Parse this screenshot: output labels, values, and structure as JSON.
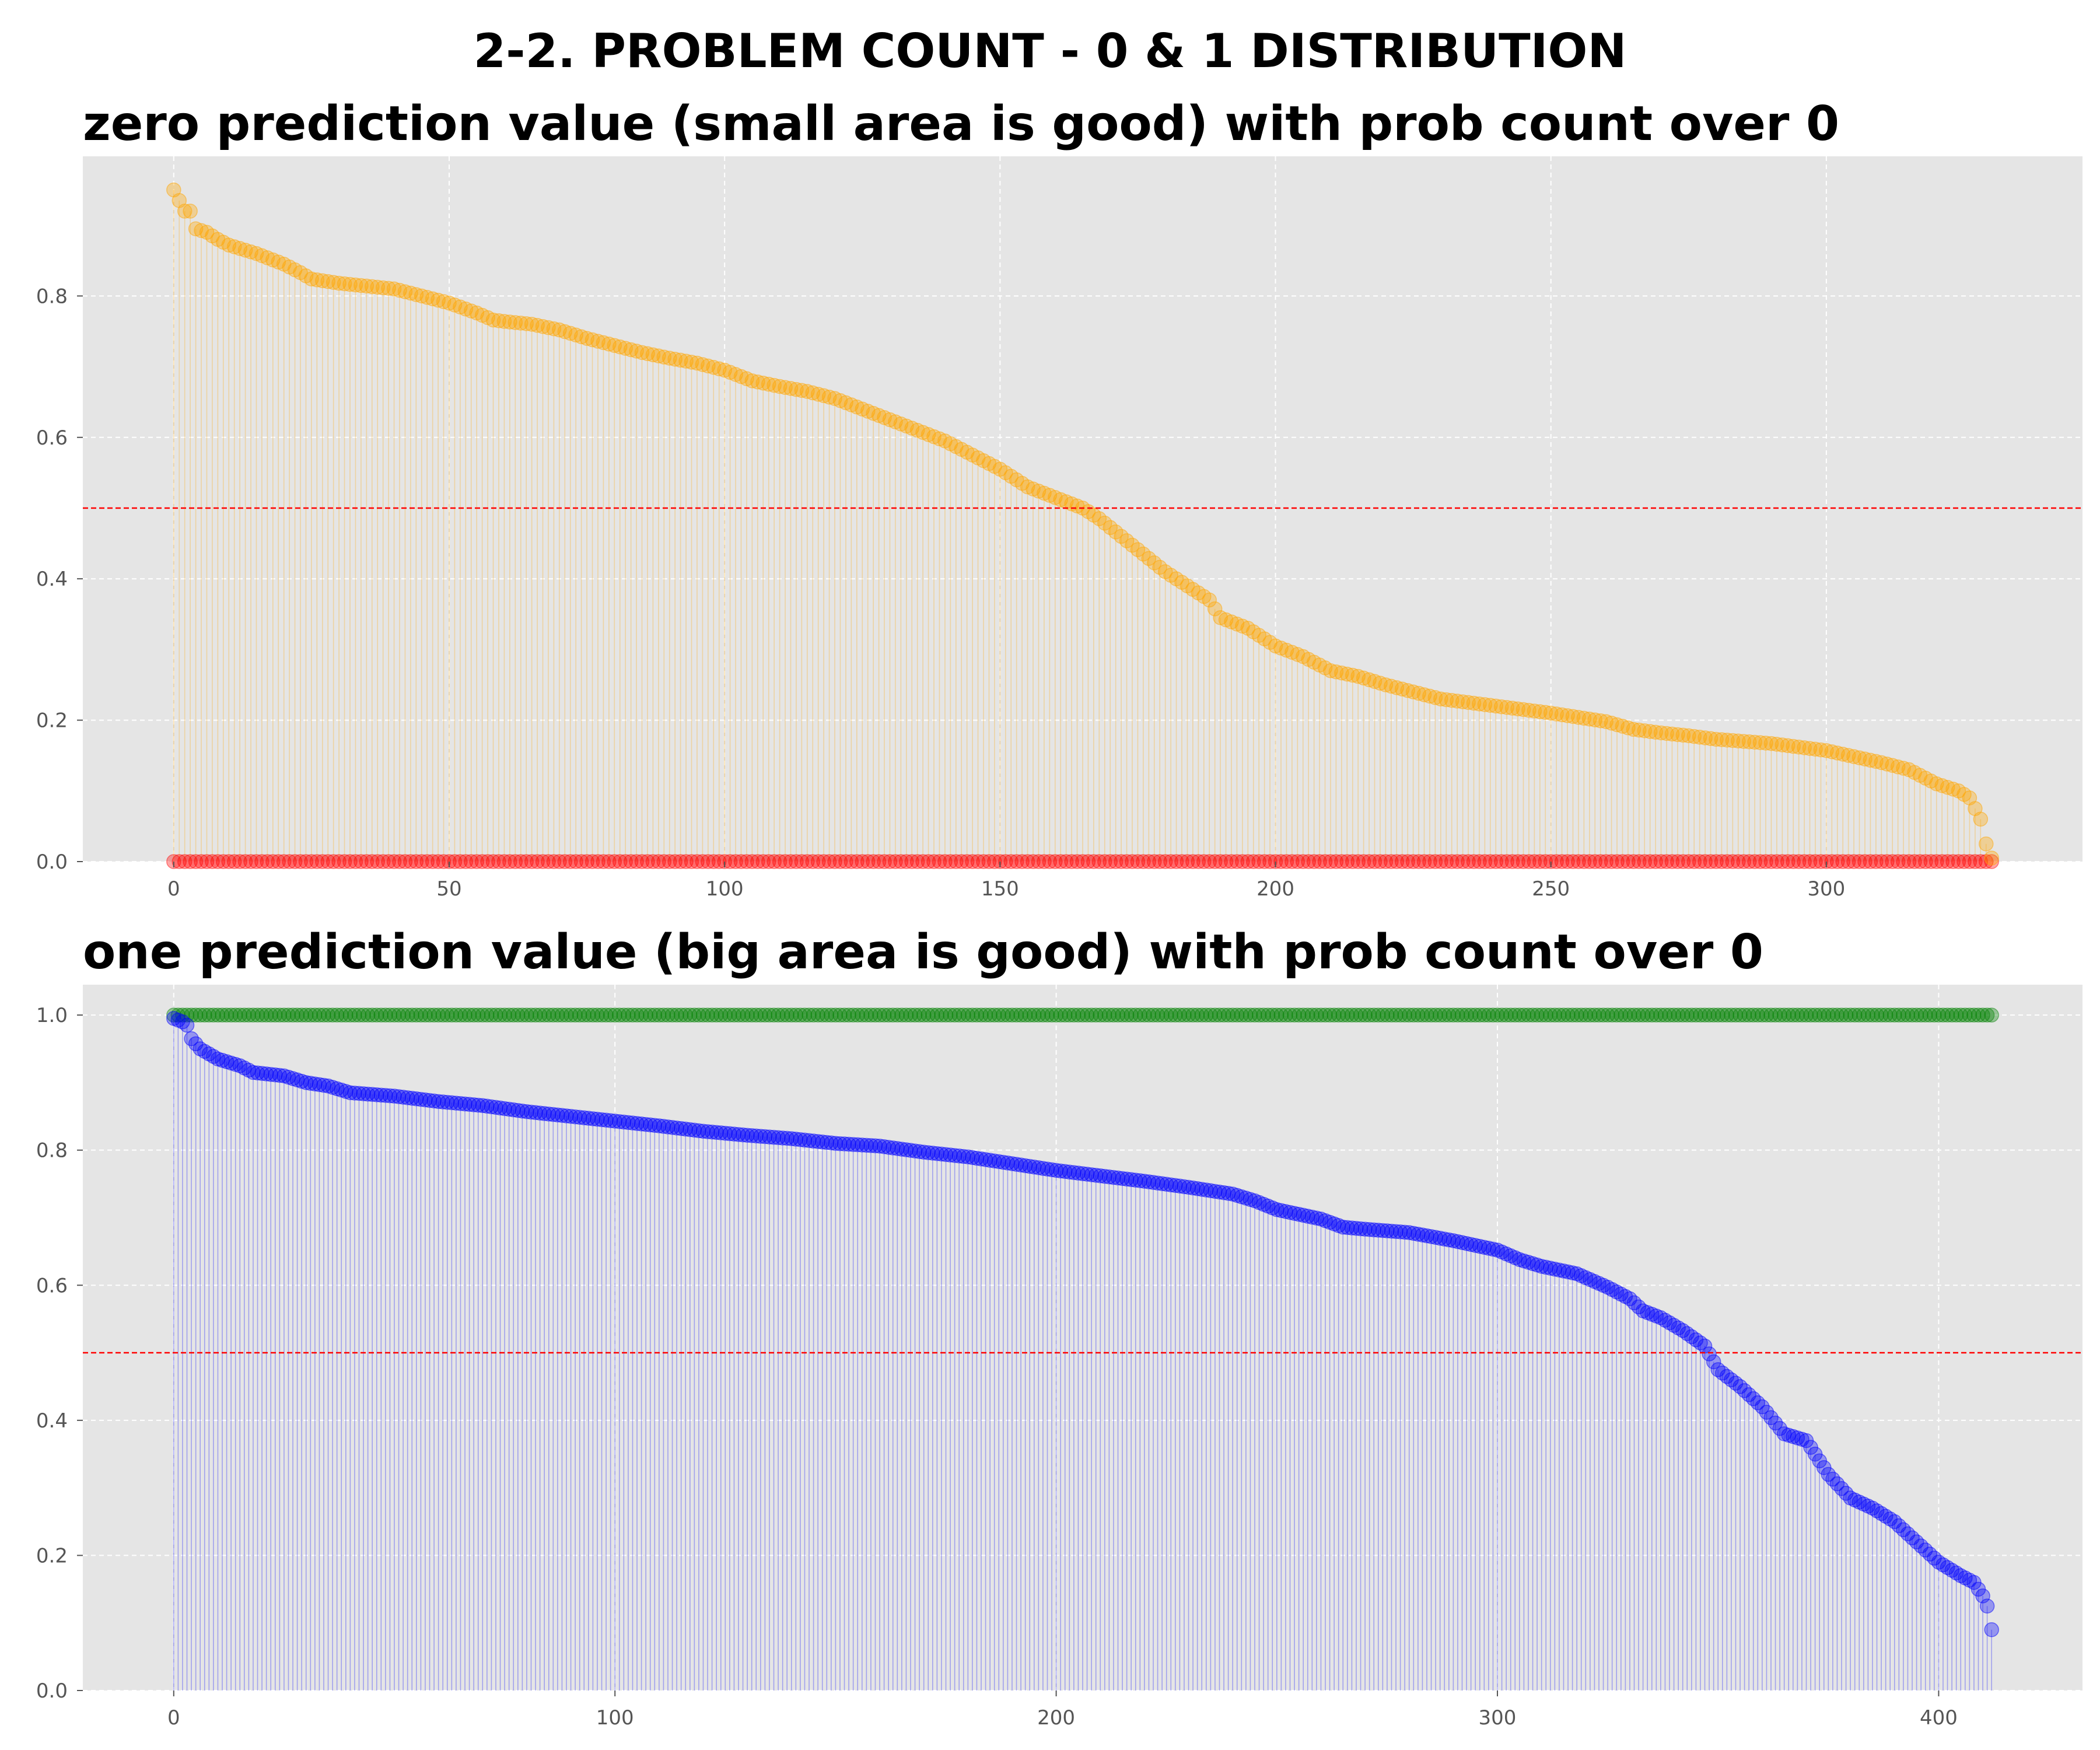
{
  "figure": {
    "suptitle": "2-2. PROBLEM COUNT - 0 & 1 DISTRIBUTION"
  },
  "chart_data": [
    {
      "type": "scatter",
      "title": "zero prediction value (small area is good) with prob count over 0",
      "xlabel": "",
      "ylabel": "",
      "xlim": [
        -16.5,
        346.5
      ],
      "ylim": [
        0,
        0.9975
      ],
      "x_ticks": [
        0,
        50,
        100,
        150,
        200,
        250,
        300
      ],
      "y_ticks": [
        0.0,
        0.2,
        0.4,
        0.6,
        0.8
      ],
      "grid": true,
      "threshold": 0.5,
      "n_points": 331,
      "series": [
        {
          "role": "prediction",
          "color": "#ffa500",
          "stems": true,
          "keypoints": [
            [
              0,
              0.95
            ],
            [
              1,
              0.935
            ],
            [
              2,
              0.92
            ],
            [
              3,
              0.92
            ],
            [
              4,
              0.895
            ],
            [
              6,
              0.89
            ],
            [
              8,
              0.88
            ],
            [
              10,
              0.872
            ],
            [
              15,
              0.86
            ],
            [
              20,
              0.845
            ],
            [
              23,
              0.833
            ],
            [
              25,
              0.824
            ],
            [
              30,
              0.818
            ],
            [
              35,
              0.814
            ],
            [
              40,
              0.81
            ],
            [
              45,
              0.8
            ],
            [
              50,
              0.79
            ],
            [
              55,
              0.776
            ],
            [
              58,
              0.766
            ],
            [
              60,
              0.764
            ],
            [
              65,
              0.76
            ],
            [
              70,
              0.752
            ],
            [
              75,
              0.74
            ],
            [
              80,
              0.73
            ],
            [
              85,
              0.72
            ],
            [
              90,
              0.712
            ],
            [
              95,
              0.705
            ],
            [
              100,
              0.695
            ],
            [
              105,
              0.68
            ],
            [
              110,
              0.672
            ],
            [
              115,
              0.665
            ],
            [
              120,
              0.655
            ],
            [
              125,
              0.64
            ],
            [
              130,
              0.625
            ],
            [
              135,
              0.61
            ],
            [
              140,
              0.595
            ],
            [
              145,
              0.575
            ],
            [
              150,
              0.555
            ],
            [
              155,
              0.53
            ],
            [
              160,
              0.515
            ],
            [
              165,
              0.5
            ],
            [
              168,
              0.485
            ],
            [
              172,
              0.46
            ],
            [
              176,
              0.435
            ],
            [
              180,
              0.41
            ],
            [
              184,
              0.39
            ],
            [
              188,
              0.37
            ],
            [
              190,
              0.345
            ],
            [
              195,
              0.33
            ],
            [
              200,
              0.305
            ],
            [
              205,
              0.29
            ],
            [
              210,
              0.27
            ],
            [
              215,
              0.262
            ],
            [
              220,
              0.25
            ],
            [
              225,
              0.24
            ],
            [
              230,
              0.23
            ],
            [
              240,
              0.22
            ],
            [
              250,
              0.21
            ],
            [
              260,
              0.198
            ],
            [
              265,
              0.187
            ],
            [
              270,
              0.182
            ],
            [
              275,
              0.178
            ],
            [
              280,
              0.173
            ],
            [
              290,
              0.167
            ],
            [
              300,
              0.157
            ],
            [
              310,
              0.14
            ],
            [
              315,
              0.13
            ],
            [
              320,
              0.11
            ],
            [
              324,
              0.1
            ],
            [
              326,
              0.09
            ],
            [
              327,
              0.075
            ],
            [
              328,
              0.06
            ],
            [
              329,
              0.025
            ],
            [
              330,
              0.005
            ]
          ]
        },
        {
          "role": "actual",
          "color": "#ff0000",
          "stems": false,
          "constant": 0.0
        }
      ]
    },
    {
      "type": "scatter",
      "title": "one prediction value (big area is good) with prob count over 0",
      "xlabel": "",
      "ylabel": "",
      "xlim": [
        -20.6,
        432.6
      ],
      "ylim": [
        0,
        1.045
      ],
      "x_ticks": [
        0,
        100,
        200,
        300,
        400
      ],
      "y_ticks": [
        0.0,
        0.2,
        0.4,
        0.6,
        0.8,
        1.0
      ],
      "grid": true,
      "threshold": 0.5,
      "n_points": 413,
      "series": [
        {
          "role": "prediction",
          "color": "#0000ff",
          "stems": true,
          "keypoints": [
            [
              0,
              0.995
            ],
            [
              2,
              0.99
            ],
            [
              3,
              0.985
            ],
            [
              4,
              0.965
            ],
            [
              6,
              0.95
            ],
            [
              10,
              0.935
            ],
            [
              15,
              0.925
            ],
            [
              18,
              0.915
            ],
            [
              25,
              0.91
            ],
            [
              30,
              0.9
            ],
            [
              35,
              0.895
            ],
            [
              40,
              0.885
            ],
            [
              50,
              0.88
            ],
            [
              60,
              0.872
            ],
            [
              70,
              0.866
            ],
            [
              80,
              0.857
            ],
            [
              90,
              0.85
            ],
            [
              100,
              0.843
            ],
            [
              110,
              0.836
            ],
            [
              120,
              0.828
            ],
            [
              130,
              0.822
            ],
            [
              140,
              0.817
            ],
            [
              150,
              0.81
            ],
            [
              160,
              0.806
            ],
            [
              170,
              0.797
            ],
            [
              180,
              0.79
            ],
            [
              190,
              0.78
            ],
            [
              200,
              0.77
            ],
            [
              210,
              0.762
            ],
            [
              220,
              0.754
            ],
            [
              230,
              0.745
            ],
            [
              240,
              0.735
            ],
            [
              245,
              0.725
            ],
            [
              250,
              0.712
            ],
            [
              260,
              0.698
            ],
            [
              265,
              0.686
            ],
            [
              270,
              0.683
            ],
            [
              280,
              0.678
            ],
            [
              290,
              0.666
            ],
            [
              300,
              0.652
            ],
            [
              305,
              0.638
            ],
            [
              310,
              0.628
            ],
            [
              318,
              0.617
            ],
            [
              325,
              0.597
            ],
            [
              330,
              0.58
            ],
            [
              333,
              0.562
            ],
            [
              337,
              0.552
            ],
            [
              342,
              0.533
            ],
            [
              347,
              0.51
            ],
            [
              350,
              0.475
            ],
            [
              355,
              0.45
            ],
            [
              360,
              0.42
            ],
            [
              365,
              0.38
            ],
            [
              370,
              0.37
            ],
            [
              375,
              0.32
            ],
            [
              380,
              0.285
            ],
            [
              385,
              0.27
            ],
            [
              390,
              0.25
            ],
            [
              395,
              0.22
            ],
            [
              400,
              0.19
            ],
            [
              405,
              0.17
            ],
            [
              408,
              0.16
            ],
            [
              410,
              0.14
            ],
            [
              411,
              0.125
            ],
            [
              412,
              0.09
            ]
          ]
        },
        {
          "role": "actual",
          "color": "#008000",
          "stems": false,
          "constant": 1.0
        }
      ]
    }
  ]
}
